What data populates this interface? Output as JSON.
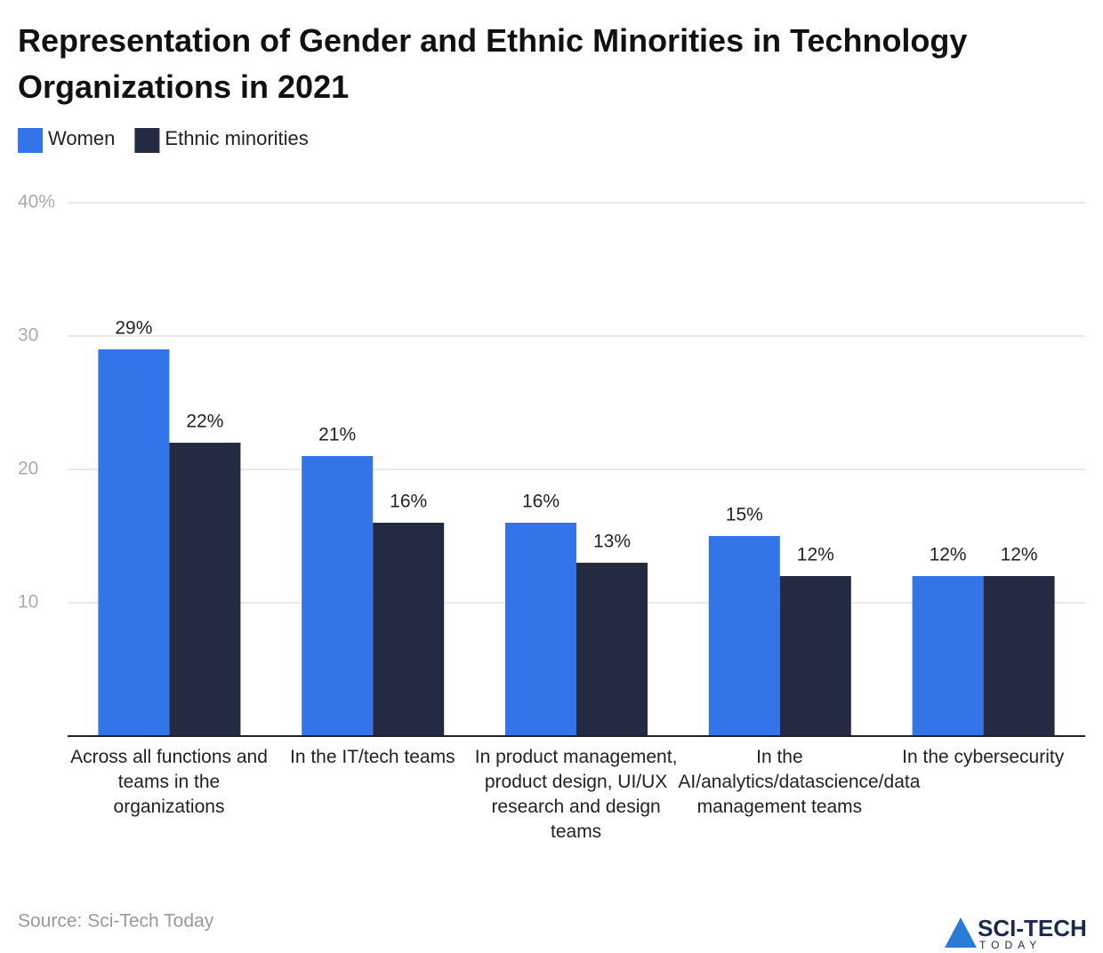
{
  "chart_data": {
    "type": "bar",
    "title": "Representation of Gender and Ethnic Minorities in Technology Organizations in 2021",
    "categories": [
      "Across all functions and teams in the organizations",
      "In the IT/tech teams",
      "In product management, product design, UI/UX research and design teams",
      "In the AI/analytics/datascience/data management teams",
      "In the cybersecurity"
    ],
    "series": [
      {
        "name": "Women",
        "color": "#3375e8",
        "values": [
          29,
          21,
          16,
          15,
          12
        ],
        "value_labels": [
          "29%",
          "21%",
          "16%",
          "15%",
          "12%"
        ]
      },
      {
        "name": "Ethnic minorities",
        "color": "#232a41",
        "values": [
          22,
          16,
          13,
          12,
          12
        ],
        "value_labels": [
          "22%",
          "16%",
          "13%",
          "12%",
          "12%"
        ]
      }
    ],
    "ylim": [
      0,
      40
    ],
    "yticks": [
      10,
      20,
      30,
      {
        "value": 40,
        "label": "40%"
      }
    ],
    "grid": true,
    "legend": "top-left"
  },
  "source": "Source: Sci-Tech Today",
  "logo": {
    "name": "SCI-TECH",
    "tagline": "TODAY"
  }
}
